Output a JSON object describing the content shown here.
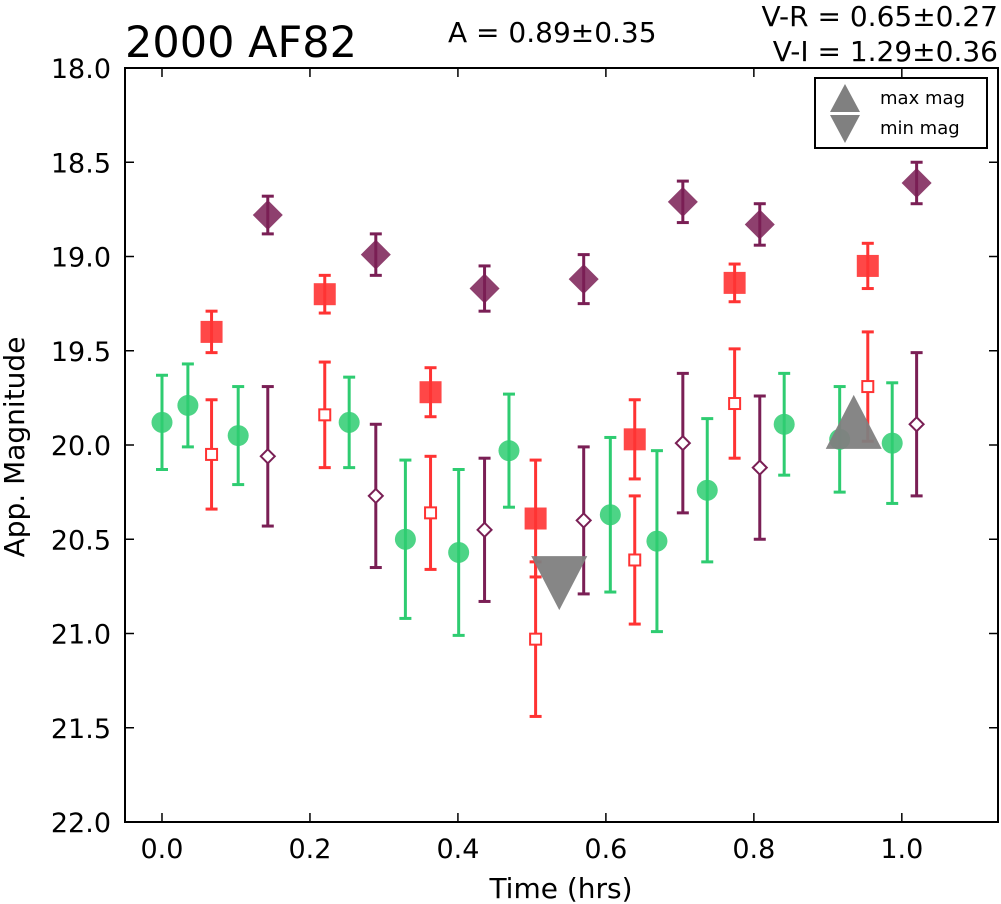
{
  "chart_data": {
    "type": "scatter",
    "title": "2000 AF82",
    "amplitude_label": "A  = 0.89±0.35",
    "color_labels": [
      "V-R = 0.65±0.27",
      "V-I  = 1.29±0.36"
    ],
    "xlabel": "Time (hrs)",
    "ylabel": "App. Magnitude",
    "xlim": [
      -0.05,
      1.13
    ],
    "ylim": [
      22.0,
      18.0
    ],
    "y_inverted": true,
    "grid": false,
    "x_ticks": [
      "0.0",
      "0.2",
      "0.4",
      "0.6",
      "0.8",
      "1.0"
    ],
    "x_tick_values": [
      0.0,
      0.2,
      0.4,
      0.6,
      0.8,
      1.0
    ],
    "y_ticks": [
      "18.0",
      "18.5",
      "19.0",
      "19.5",
      "20.0",
      "20.5",
      "21.0",
      "21.5",
      "22.0"
    ],
    "y_tick_values": [
      18.0,
      18.5,
      19.0,
      19.5,
      20.0,
      20.5,
      21.0,
      21.5,
      22.0
    ],
    "legend": {
      "position": "top-right",
      "entries": [
        {
          "label": "max mag",
          "marker": "triangle-up"
        },
        {
          "label": "min mag",
          "marker": "triangle-down"
        }
      ]
    },
    "series": [
      {
        "marker": "circle",
        "color": "#2ecc71",
        "points": [
          {
            "x": 0.0,
            "y": 19.88,
            "err": 0.25
          },
          {
            "x": 0.035,
            "y": 19.79,
            "err": 0.22
          },
          {
            "x": 0.103,
            "y": 19.95,
            "err": 0.26
          },
          {
            "x": 0.253,
            "y": 19.88,
            "err": 0.24
          },
          {
            "x": 0.329,
            "y": 20.5,
            "err": 0.42
          },
          {
            "x": 0.401,
            "y": 20.57,
            "err": 0.44
          },
          {
            "x": 0.469,
            "y": 20.03,
            "err": 0.3
          },
          {
            "x": 0.606,
            "y": 20.37,
            "err": 0.41
          },
          {
            "x": 0.669,
            "y": 20.51,
            "err": 0.48
          },
          {
            "x": 0.737,
            "y": 20.24,
            "err": 0.38
          },
          {
            "x": 0.841,
            "y": 19.89,
            "err": 0.27
          },
          {
            "x": 0.916,
            "y": 19.97,
            "err": 0.28
          },
          {
            "x": 0.987,
            "y": 19.99,
            "err": 0.32
          }
        ]
      },
      {
        "marker": "square",
        "color": "#ff3333",
        "points": [
          {
            "x": 0.067,
            "y": 19.4,
            "err": 0.11
          },
          {
            "x": 0.22,
            "y": 19.2,
            "err": 0.1
          },
          {
            "x": 0.363,
            "y": 19.72,
            "err": 0.13
          },
          {
            "x": 0.505,
            "y": 20.39,
            "err": 0.31
          },
          {
            "x": 0.639,
            "y": 19.97,
            "err": 0.21
          },
          {
            "x": 0.774,
            "y": 19.14,
            "err": 0.1
          },
          {
            "x": 0.954,
            "y": 19.05,
            "err": 0.12
          }
        ]
      },
      {
        "marker": "square-open",
        "color": "#ff3333",
        "points": [
          {
            "x": 0.067,
            "y": 20.05,
            "err": 0.29
          },
          {
            "x": 0.22,
            "y": 19.84,
            "err": 0.28
          },
          {
            "x": 0.363,
            "y": 20.36,
            "err": 0.3
          },
          {
            "x": 0.505,
            "y": 21.03,
            "err": 0.41
          },
          {
            "x": 0.639,
            "y": 20.61,
            "err": 0.34
          },
          {
            "x": 0.774,
            "y": 19.78,
            "err": 0.29
          },
          {
            "x": 0.954,
            "y": 19.69,
            "err": 0.29
          }
        ]
      },
      {
        "marker": "diamond",
        "color": "#7a1f55",
        "points": [
          {
            "x": 0.143,
            "y": 18.78,
            "err": 0.1
          },
          {
            "x": 0.289,
            "y": 18.99,
            "err": 0.11
          },
          {
            "x": 0.436,
            "y": 19.17,
            "err": 0.12
          },
          {
            "x": 0.57,
            "y": 19.12,
            "err": 0.13
          },
          {
            "x": 0.704,
            "y": 18.71,
            "err": 0.11
          },
          {
            "x": 0.808,
            "y": 18.83,
            "err": 0.11
          },
          {
            "x": 1.02,
            "y": 18.61,
            "err": 0.11
          }
        ]
      },
      {
        "marker": "diamond-open",
        "color": "#7a1f55",
        "points": [
          {
            "x": 0.143,
            "y": 20.06,
            "err": 0.37
          },
          {
            "x": 0.289,
            "y": 20.27,
            "err": 0.38
          },
          {
            "x": 0.436,
            "y": 20.45,
            "err": 0.38
          },
          {
            "x": 0.57,
            "y": 20.4,
            "err": 0.39
          },
          {
            "x": 0.704,
            "y": 19.99,
            "err": 0.37
          },
          {
            "x": 0.808,
            "y": 20.12,
            "err": 0.38
          },
          {
            "x": 1.02,
            "y": 19.89,
            "err": 0.38
          }
        ]
      }
    ],
    "extrema": [
      {
        "type": "max",
        "x": 0.935,
        "y": 19.92,
        "marker": "triangle-up",
        "color": "#808080"
      },
      {
        "type": "min",
        "x": 0.537,
        "y": 20.69,
        "marker": "triangle-down",
        "color": "#808080"
      }
    ]
  }
}
